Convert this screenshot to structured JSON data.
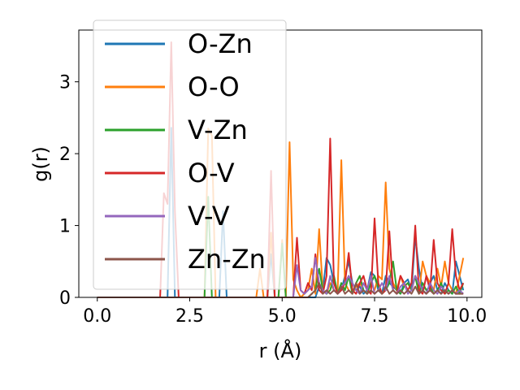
{
  "chart_data": {
    "type": "line",
    "xlabel": "r (Å)",
    "ylabel": "g(r)",
    "xlim": [
      -0.5,
      10.4
    ],
    "ylim": [
      0,
      3.72
    ],
    "xticks": [
      0.0,
      2.5,
      5.0,
      7.5,
      10.0
    ],
    "xtick_labels": [
      "0.0",
      "2.5",
      "5.0",
      "7.5",
      "10.0"
    ],
    "yticks": [
      0,
      1,
      2,
      3
    ],
    "ytick_labels": [
      "0",
      "1",
      "2",
      "3"
    ],
    "grid": false,
    "legend_position": "upper left",
    "x": [
      0.0,
      0.1,
      0.2,
      0.3,
      0.4,
      0.5,
      0.6,
      0.7,
      0.8,
      0.9,
      1.0,
      1.1,
      1.2,
      1.3,
      1.4,
      1.5,
      1.6,
      1.7,
      1.8,
      1.9,
      2.0,
      2.1,
      2.2,
      2.3,
      2.4,
      2.5,
      2.6,
      2.7,
      2.8,
      2.9,
      3.0,
      3.1,
      3.2,
      3.3,
      3.4,
      3.5,
      3.6,
      3.7,
      3.8,
      3.9,
      4.0,
      4.1,
      4.2,
      4.3,
      4.4,
      4.5,
      4.6,
      4.7,
      4.8,
      4.9,
      5.0,
      5.1,
      5.2,
      5.3,
      5.4,
      5.5,
      5.6,
      5.7,
      5.8,
      5.9,
      6.0,
      6.1,
      6.2,
      6.3,
      6.4,
      6.5,
      6.6,
      6.7,
      6.8,
      6.9,
      7.0,
      7.1,
      7.2,
      7.3,
      7.4,
      7.5,
      7.6,
      7.7,
      7.8,
      7.9,
      8.0,
      8.1,
      8.2,
      8.3,
      8.4,
      8.5,
      8.6,
      8.7,
      8.8,
      8.9,
      9.0,
      9.1,
      9.2,
      9.3,
      9.4,
      9.5,
      9.6,
      9.7,
      9.8,
      9.9
    ],
    "series": [
      {
        "name": "O-Zn",
        "color": "#1f77b4",
        "values": [
          0,
          0,
          0,
          0,
          0,
          0,
          0,
          0,
          0,
          0,
          0,
          0,
          0,
          0,
          0,
          0,
          0,
          0,
          0,
          0,
          2.36,
          0,
          0,
          0,
          0,
          0,
          0,
          0,
          0,
          0,
          0,
          0,
          0,
          0,
          1.2,
          0,
          0,
          0,
          0,
          0,
          0,
          0,
          0,
          0,
          0,
          0,
          0,
          0.6,
          0,
          0,
          0,
          0,
          0,
          0,
          0,
          0,
          0,
          0,
          0,
          0,
          0.15,
          0.1,
          0.55,
          0.45,
          0.2,
          0.05,
          0.1,
          0.3,
          0.5,
          0.2,
          0.1,
          0.15,
          0.05,
          0.1,
          0.35,
          0.3,
          0.1,
          0.05,
          0.3,
          0.2,
          0.15,
          0.1,
          0.05,
          0.2,
          0.25,
          0.1,
          0.85,
          0.4,
          0.1,
          0.05,
          0.2,
          0.3,
          0.1,
          0.05,
          0.2,
          0.1,
          0.05,
          0.5,
          0.3,
          0.1
        ]
      },
      {
        "name": "O-O",
        "color": "#ff7f0e",
        "values": [
          0,
          0,
          0,
          0,
          0,
          0,
          0,
          0,
          0,
          0,
          0,
          0,
          0,
          0,
          0,
          0,
          0,
          0,
          0,
          0,
          0,
          0,
          0,
          0,
          0,
          0,
          0,
          0,
          0,
          0,
          2.35,
          2.25,
          0,
          0,
          0,
          0,
          0,
          0,
          0,
          0,
          0,
          0,
          0,
          0,
          0.4,
          0,
          0,
          0.9,
          0,
          0,
          0.8,
          0,
          2.16,
          0.25,
          0.1,
          0,
          0.05,
          0.1,
          0.4,
          0.05,
          0.95,
          0.1,
          0.05,
          0.2,
          0.1,
          0.05,
          1.91,
          0.2,
          0.1,
          0.05,
          0.15,
          0.2,
          0.1,
          0.05,
          0.2,
          0.1,
          0.3,
          0.25,
          1.6,
          0.4,
          0.2,
          0.1,
          0.3,
          0.15,
          0.2,
          0.1,
          0.3,
          0.05,
          0.5,
          0.3,
          0.2,
          0.1,
          0.4,
          0.15,
          0.5,
          0.2,
          0.1,
          0.05,
          0.3,
          0.55
        ]
      },
      {
        "name": "V-Zn",
        "color": "#2ca02c",
        "values": [
          0,
          0,
          0,
          0,
          0,
          0,
          0,
          0,
          0,
          0,
          0,
          0,
          0,
          0,
          0,
          0,
          0,
          0,
          0,
          0,
          0,
          0,
          0,
          0,
          0,
          0,
          0,
          0,
          0,
          0,
          1.4,
          0,
          0,
          0,
          0,
          0,
          0,
          0,
          0,
          0,
          0,
          0,
          0,
          0,
          0,
          0,
          0,
          0,
          0,
          0,
          0.75,
          0,
          0,
          0,
          0,
          0,
          0,
          0,
          0.05,
          0.1,
          0.4,
          0.1,
          0.05,
          0.1,
          0.3,
          0.05,
          0.2,
          0.1,
          0.3,
          0.05,
          0.2,
          0.3,
          0.1,
          0.05,
          0.2,
          0.3,
          0.15,
          0.05,
          0.1,
          0.2,
          0.5,
          0.1,
          0.05,
          0.15,
          0.2,
          0.1,
          0.3,
          0.05,
          0.2,
          0.1,
          0.15,
          0.05,
          0.1,
          0.2,
          0.05,
          0.1,
          0.05,
          0.15,
          0.05,
          0.2
        ]
      },
      {
        "name": "O-V",
        "color": "#d62728",
        "values": [
          0,
          0,
          0,
          0,
          0,
          0,
          0,
          0,
          0,
          0,
          0,
          0,
          0,
          0,
          0,
          0,
          0,
          0,
          1.45,
          1.3,
          3.55,
          1.2,
          0,
          0,
          0,
          0,
          0,
          0,
          0,
          0,
          0,
          0,
          0,
          0,
          0,
          0,
          0,
          0,
          0,
          0,
          0,
          0,
          0,
          0,
          0,
          0,
          0,
          1.76,
          0,
          0,
          0,
          0,
          0,
          0,
          0.83,
          0.1,
          0.05,
          0.2,
          0.1,
          0.6,
          0.1,
          0.05,
          0.3,
          2.21,
          0.2,
          0.05,
          0.1,
          0.2,
          0.62,
          0.1,
          0.05,
          0.2,
          0.3,
          0.1,
          0.05,
          1.1,
          0.2,
          0.05,
          0.1,
          0.92,
          0.1,
          0.05,
          0.3,
          0.2,
          0.1,
          0.2,
          1.0,
          0.1,
          0.05,
          0.3,
          0.1,
          0.8,
          0.2,
          0.1,
          0.05,
          0.2,
          0.95,
          0.3,
          0.1,
          0.2
        ]
      },
      {
        "name": "V-V",
        "color": "#9467bd",
        "values": [
          0,
          0,
          0,
          0,
          0,
          0,
          0,
          0,
          0,
          0,
          0,
          0,
          0,
          0,
          0,
          0,
          0,
          0,
          0,
          0,
          0,
          0,
          0,
          0,
          0,
          0,
          0,
          0,
          0,
          0,
          0,
          0,
          0,
          0,
          0,
          0,
          0,
          0,
          0,
          0,
          0,
          0,
          0,
          0,
          0,
          0,
          0,
          0,
          0,
          0,
          0,
          0,
          0,
          0,
          0.45,
          0.1,
          0.05,
          0.1,
          0.15,
          0.55,
          0.2,
          0.1,
          0.05,
          0.3,
          0.1,
          0.05,
          0.15,
          0.2,
          0.3,
          0.2,
          0.1,
          0.05,
          0.2,
          0.1,
          0.3,
          0.05,
          0.1,
          0.2,
          0.1,
          0.3,
          0.1,
          0.05,
          0.15,
          0.2,
          0.05,
          0.1,
          0.3,
          0.2,
          0.1,
          0.05,
          0.2,
          0.1,
          0.05,
          0.15,
          0.1,
          0.05,
          0.1,
          0.05,
          0.1,
          0.05
        ]
      },
      {
        "name": "Zn-Zn",
        "color": "#8c564b",
        "values": [
          0,
          0,
          0,
          0,
          0,
          0,
          0,
          0,
          0,
          0,
          0,
          0,
          0,
          0,
          0,
          0,
          0,
          0,
          0,
          0,
          0,
          0,
          0,
          0,
          0,
          0,
          0,
          0,
          0,
          0,
          0,
          0,
          0,
          0,
          0,
          0,
          0,
          0,
          0,
          0,
          0,
          0,
          0,
          0,
          0,
          0,
          0,
          0,
          0,
          0,
          0,
          0,
          0,
          0,
          0,
          0,
          0,
          0,
          0.05,
          0.1,
          0.2,
          0.05,
          0.1,
          0.05,
          0.1,
          0.05,
          0.15,
          0.05,
          0.1,
          0.05,
          0.2,
          0.05,
          0.1,
          0.05,
          0.1,
          0.05,
          0.1,
          0.05,
          0.15,
          0.05,
          0.1,
          0.05,
          0.1,
          0.05,
          0.1,
          0.05,
          0.15,
          0.05,
          0.1,
          0.05,
          0.1,
          0.05,
          0.1,
          0.05,
          0.1,
          0.05,
          0.1,
          0.05,
          0.05,
          0.05
        ]
      }
    ]
  }
}
